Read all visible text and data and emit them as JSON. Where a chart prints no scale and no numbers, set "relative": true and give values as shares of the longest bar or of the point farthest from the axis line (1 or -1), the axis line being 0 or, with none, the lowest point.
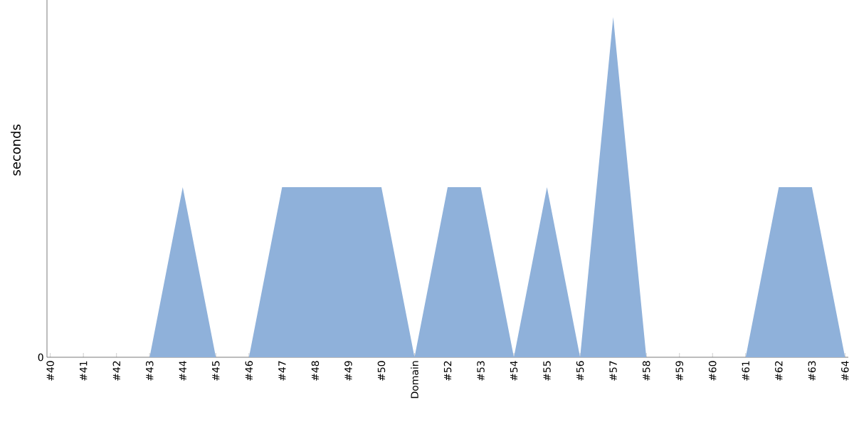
{
  "chart_data": {
    "type": "area",
    "ylabel": "seconds",
    "relative": true,
    "categories": [
      "#40",
      "#41",
      "#42",
      "#43",
      "#44",
      "#45",
      "#46",
      "#47",
      "#48",
      "#49",
      "#50",
      "Domain",
      "#52",
      "#53",
      "#54",
      "#55",
      "#56",
      "#57",
      "#58",
      "#59",
      "#60",
      "#61",
      "#62",
      "#63",
      "#64"
    ],
    "values": [
      0,
      0,
      0,
      0,
      0.5,
      0,
      0,
      0.5,
      0.5,
      0.5,
      0.5,
      0,
      0.5,
      0.5,
      0,
      0.5,
      0,
      1,
      0,
      0,
      0,
      0,
      0.5,
      0.5,
      0
    ],
    "color": "#8fb1da",
    "annotations": [
      "0"
    ]
  }
}
